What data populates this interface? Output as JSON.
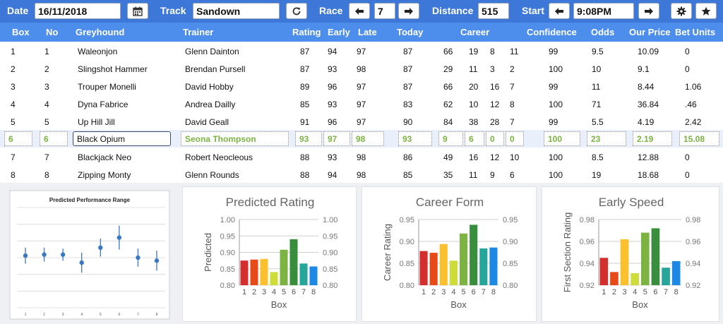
{
  "toolbar": {
    "date_label": "Date",
    "date_value": "16/11/2018",
    "calendar_icon": "calendar-icon",
    "track_label": "Track",
    "track_value": "Sandown",
    "refresh_icon": "refresh-icon",
    "race_label": "Race",
    "race_value": "7",
    "distance_label": "Distance",
    "distance_value": "515",
    "start_label": "Start",
    "start_value": "9:08PM",
    "settings_icon": "gear-icon",
    "favourite_icon": "star-icon"
  },
  "columns": [
    "Box",
    "No",
    "Greyhound",
    "Trainer",
    "Rating",
    "Early",
    "Late",
    "Today",
    "Career",
    "Confidence",
    "Odds",
    "Our Price",
    "Bet Units"
  ],
  "rows": [
    {
      "box": "1",
      "no": "1",
      "greyhound": "Waleonjon",
      "trainer": "Glenn Dainton",
      "rating": "87",
      "early": "94",
      "late": "97",
      "today": "87",
      "c1": "66",
      "c2": "19",
      "c3": "8",
      "c4": "11",
      "confidence": "99",
      "odds": "9.5",
      "price": "10.09",
      "units": "0"
    },
    {
      "box": "2",
      "no": "2",
      "greyhound": "Slingshot Hammer",
      "trainer": "Brendan Pursell",
      "rating": "87",
      "early": "93",
      "late": "98",
      "today": "87",
      "c1": "29",
      "c2": "11",
      "c3": "3",
      "c4": "2",
      "confidence": "100",
      "odds": "10",
      "price": "9.1",
      "units": "0"
    },
    {
      "box": "3",
      "no": "3",
      "greyhound": "Trouper Monelli",
      "trainer": "David Hobby",
      "rating": "89",
      "early": "96",
      "late": "97",
      "today": "87",
      "c1": "66",
      "c2": "20",
      "c3": "16",
      "c4": "7",
      "confidence": "99",
      "odds": "11",
      "price": "8.44",
      "units": "1.06"
    },
    {
      "box": "4",
      "no": "4",
      "greyhound": "Dyna Fabrice",
      "trainer": "Andrea Dailly",
      "rating": "85",
      "early": "93",
      "late": "97",
      "today": "83",
      "c1": "62",
      "c2": "10",
      "c3": "12",
      "c4": "8",
      "confidence": "100",
      "odds": "71",
      "price": "36.84",
      "units": ".46"
    },
    {
      "box": "5",
      "no": "5",
      "greyhound": "Up Hill Jill",
      "trainer": "David Geall",
      "rating": "91",
      "early": "96",
      "late": "97",
      "today": "90",
      "c1": "84",
      "c2": "38",
      "c3": "28",
      "c4": "7",
      "confidence": "99",
      "odds": "5.5",
      "price": "4.19",
      "units": "2.42"
    },
    {
      "box": "6",
      "no": "6",
      "greyhound": "Black Opium",
      "trainer": "Seona Thompson",
      "rating": "93",
      "early": "97",
      "late": "98",
      "today": "93",
      "c1": "9",
      "c2": "6",
      "c3": "0",
      "c4": "0",
      "confidence": "100",
      "odds": "23",
      "price": "2.19",
      "units": "15.08",
      "selected": true
    },
    {
      "box": "7",
      "no": "7",
      "greyhound": "Blackjack Neo",
      "trainer": "Robert Neocleous",
      "rating": "88",
      "early": "93",
      "late": "98",
      "today": "86",
      "c1": "49",
      "c2": "16",
      "c3": "12",
      "c4": "10",
      "confidence": "100",
      "odds": "8.5",
      "price": "12.88",
      "units": "0"
    },
    {
      "box": "8",
      "no": "8",
      "greyhound": "Zipping Monty",
      "trainer": "Glenn Rounds",
      "rating": "88",
      "early": "94",
      "late": "98",
      "today": "85",
      "c1": "35",
      "c2": "11",
      "c3": "9",
      "c4": "6",
      "confidence": "100",
      "odds": "19",
      "price": "18.68",
      "units": "0"
    }
  ],
  "colors": {
    "toolbar": "#3d78d8",
    "header": "#4d8eed",
    "highlight": "#7cb342",
    "bars": [
      "#d32f2f",
      "#e64a19",
      "#fbc02d",
      "#cddc39",
      "#7cb342",
      "#388e3c",
      "#26a69a",
      "#1e88e5"
    ]
  },
  "chart_data": [
    {
      "type": "scatter",
      "title": "Predicted Performance Range",
      "x": [
        "1",
        "2",
        "3",
        "4",
        "5",
        "6",
        "7",
        "8"
      ],
      "y": [
        0.52,
        0.53,
        0.53,
        0.45,
        0.6,
        0.7,
        0.5,
        0.47
      ],
      "error": [
        0.08,
        0.07,
        0.06,
        0.1,
        0.09,
        0.12,
        0.09,
        0.1
      ],
      "ylim": [
        0,
        1
      ]
    },
    {
      "type": "bar",
      "title": "Predicted Rating",
      "categories": [
        "1",
        "2",
        "3",
        "4",
        "5",
        "6",
        "7",
        "8"
      ],
      "values": [
        0.875,
        0.878,
        0.88,
        0.84,
        0.908,
        0.94,
        0.866,
        0.857
      ],
      "xlabel": "Box",
      "ylabel": "Predicted",
      "ylim": [
        0.8,
        1.0
      ],
      "yticks": [
        "0.80",
        "0.85",
        "0.90",
        "0.95",
        "1.00"
      ]
    },
    {
      "type": "bar",
      "title": "Career Form",
      "categories": [
        "1",
        "2",
        "3",
        "4",
        "5",
        "6",
        "7",
        "8"
      ],
      "values": [
        0.878,
        0.874,
        0.894,
        0.856,
        0.918,
        0.938,
        0.884,
        0.886
      ],
      "xlabel": "Box",
      "ylabel": "Career Rating",
      "ylim": [
        0.8,
        0.95
      ],
      "yticks": [
        "0.80",
        "0.85",
        "0.90",
        "0.95"
      ]
    },
    {
      "type": "bar",
      "title": "Early Speed",
      "categories": [
        "1",
        "2",
        "3",
        "4",
        "5",
        "6",
        "7",
        "8"
      ],
      "values": [
        0.945,
        0.932,
        0.962,
        0.931,
        0.968,
        0.972,
        0.936,
        0.942
      ],
      "xlabel": "Box",
      "ylabel": "First Section Rating",
      "ylim": [
        0.92,
        0.98
      ],
      "yticks": [
        "0.92",
        "0.94",
        "0.96",
        "0.98"
      ]
    }
  ]
}
